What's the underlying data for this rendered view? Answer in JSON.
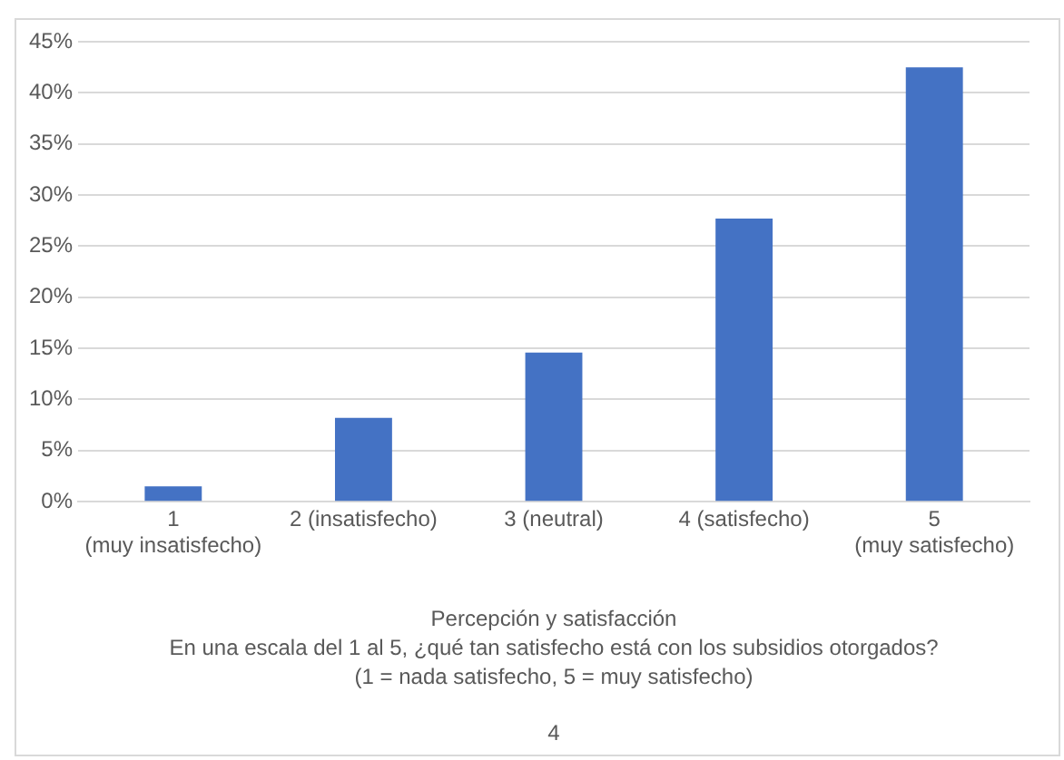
{
  "chart_data": {
    "type": "bar",
    "categories": [
      "1 (muy insatisfecho)",
      "2 (insatisfecho)",
      "3 (neutral)",
      "4 (satisfecho)",
      "5 (muy satisfecho)"
    ],
    "values": [
      1.5,
      8.2,
      14.6,
      27.7,
      42.5
    ],
    "color": "#4472c4",
    "ylim": [
      0,
      45
    ],
    "yticks": [
      {
        "value": 0,
        "label": "0%"
      },
      {
        "value": 5,
        "label": "5%"
      },
      {
        "value": 10,
        "label": "10%"
      },
      {
        "value": 15,
        "label": "15%"
      },
      {
        "value": 20,
        "label": "20%"
      },
      {
        "value": 25,
        "label": "25%"
      },
      {
        "value": 30,
        "label": "30%"
      },
      {
        "value": 35,
        "label": "35%"
      },
      {
        "value": 40,
        "label": "40%"
      },
      {
        "value": 45,
        "label": "45%"
      }
    ],
    "xlabel": "Percepción y satisfacción\nEn una escala del 1 al 5, ¿qué tan satisfecho está con los subsidios otorgados?\n(1 = nada satisfecho, 5 = muy satisfecho)",
    "annotations": [
      "4"
    ],
    "grid": "y",
    "legend": false
  }
}
